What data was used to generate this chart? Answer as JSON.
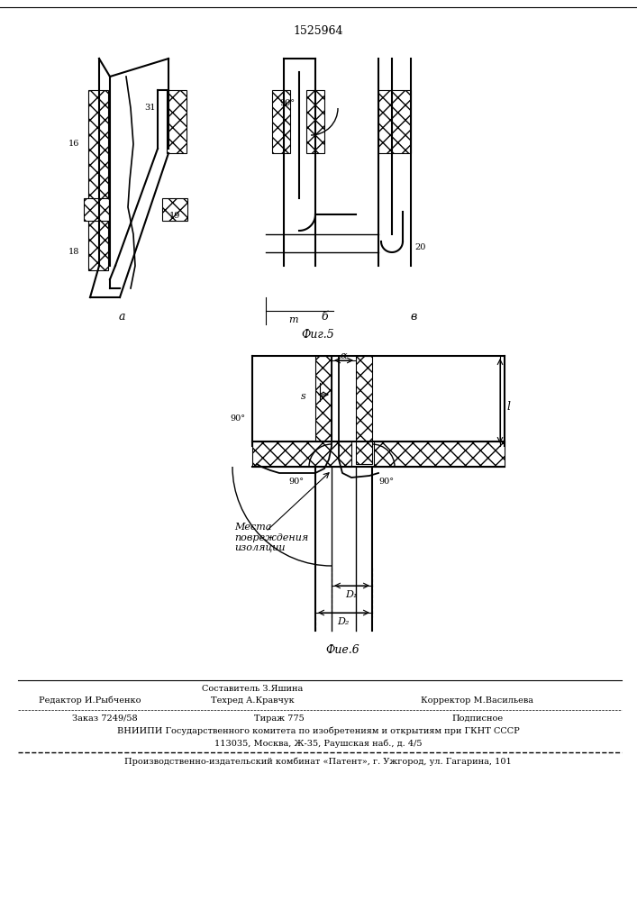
{
  "patent_number": "1525964",
  "fig5_label": "Фиг.5",
  "fig6_label": "Фие.6",
  "bg_color": "#ffffff",
  "line_color": "#000000",
  "hatch_color": "#000000",
  "footer": {
    "composer_label": "Составитель З.Яшина",
    "editor_label": "Редактор И.Рыбченко",
    "techred_label": "Техред А.Кравчук",
    "corrector_label": "Корректор М.Васильева",
    "order_label": "Заказ 7249/58",
    "tirazh_label": "Тираж 775",
    "podpisnoe_label": "Подписное",
    "vniiipi_line1": "ВНИИПИ Государственного комитета по изобретениям и открытиям при ГКНТ СССР",
    "vniiipi_line2": "113035, Москва, Ж-35, Раушская наб., д. 4/5",
    "patent_plant": "Производственно-издательский комбинат «Патент», г. Ужгород, ул. Гагарина, 101"
  }
}
